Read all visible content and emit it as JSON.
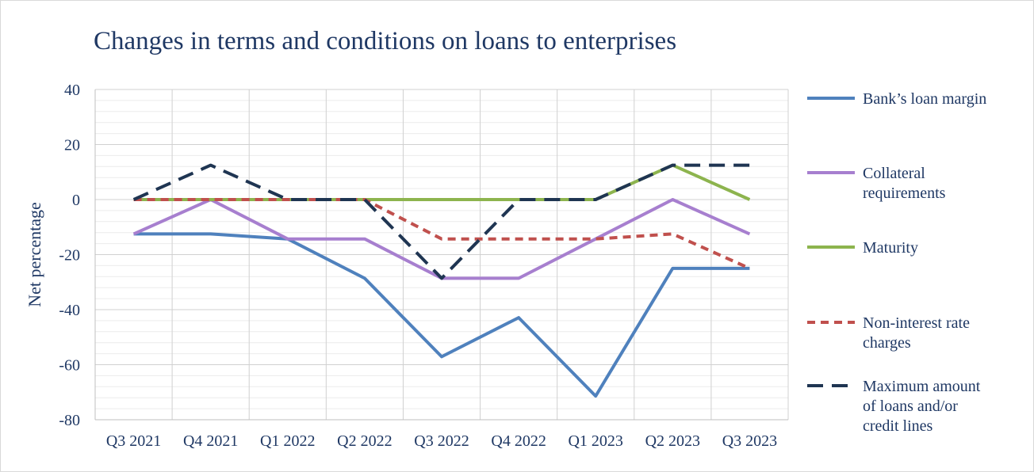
{
  "chart_data": {
    "type": "line",
    "title": "Changes in terms and conditions on loans to enterprises",
    "xlabel": "",
    "ylabel": "Net percentage",
    "ylim": [
      -80,
      40
    ],
    "yticks": [
      40,
      20,
      0,
      -20,
      -40,
      -60,
      -80
    ],
    "categories": [
      "Q3 2021",
      "Q4 2021",
      "Q1 2022",
      "Q2 2022",
      "Q3 2022",
      "Q4 2022",
      "Q1 2023",
      "Q2 2023",
      "Q3 2023"
    ],
    "grid": true,
    "legend_position": "right",
    "series": [
      {
        "name": "Bank’s loan margin",
        "legend_lines": [
          "Bank’s loan margin"
        ],
        "color": "#4f81bd",
        "dash": "solid",
        "values": [
          -12.5,
          -12.5,
          -14.3,
          -28.6,
          -57.1,
          -42.9,
          -71.4,
          -25,
          -25
        ]
      },
      {
        "name": " Collateral requirements",
        "legend_lines": [
          " Collateral",
          "requirements"
        ],
        "color": "#a77fcf",
        "dash": "solid",
        "values": [
          -12.5,
          0,
          -14.3,
          -14.3,
          -28.6,
          -28.6,
          -14.3,
          0,
          -12.5
        ]
      },
      {
        "name": "Maturity",
        "legend_lines": [
          "Maturity"
        ],
        "color": "#8db44e",
        "dash": "solid",
        "values": [
          0,
          0,
          0,
          0,
          0,
          0,
          0,
          12.5,
          0
        ]
      },
      {
        "name": "Non-interest rate charges",
        "legend_lines": [
          "Non-interest rate",
          "charges"
        ],
        "color": "#c0504d",
        "dash": "short",
        "values": [
          0,
          0,
          0,
          0,
          -14.3,
          -14.3,
          -14.3,
          -12.5,
          -25
        ]
      },
      {
        "name": "Maximum amount of loans and/or credit lines",
        "legend_lines": [
          "Maximum amount",
          "of loans and/or",
          "credit lines"
        ],
        "color": "#1f3552",
        "dash": "long",
        "values": [
          0,
          12.5,
          0,
          0,
          -28.6,
          0,
          0,
          12.5,
          12.5
        ]
      }
    ]
  }
}
